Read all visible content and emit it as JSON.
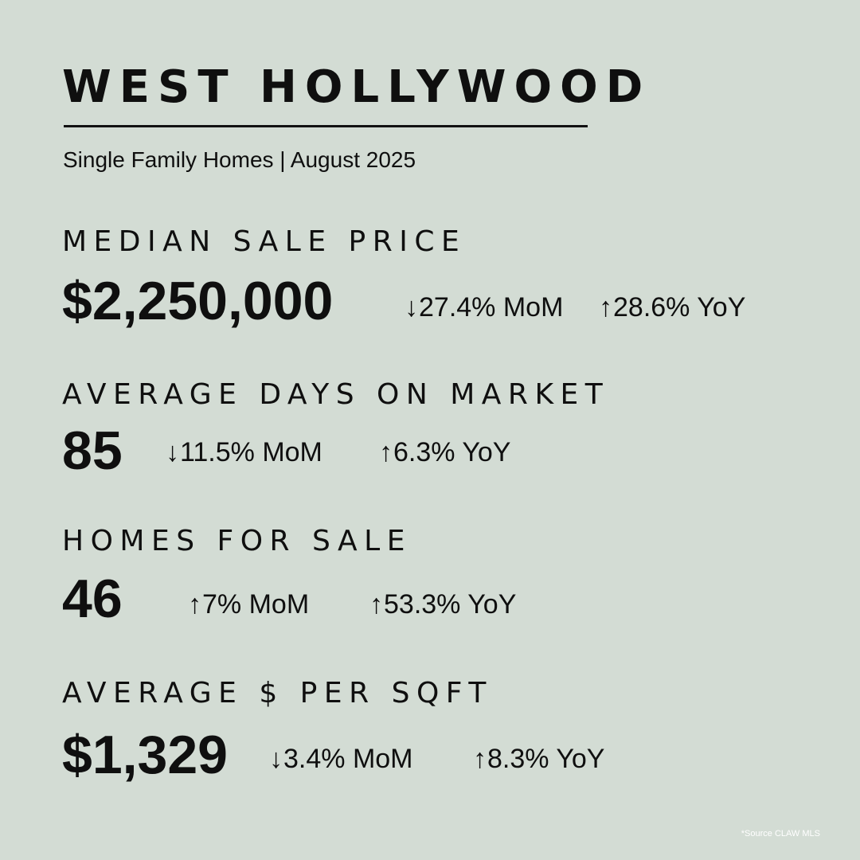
{
  "header": {
    "title": "WEST HOLLYWOOD",
    "subtitle": "Single Family Homes | August 2025"
  },
  "metrics": [
    {
      "label": "MEDIAN SALE PRICE",
      "value": "$2,250,000",
      "mom": {
        "arrow": "↓",
        "text": "27.4% MoM"
      },
      "yoy": {
        "arrow": "↑",
        "text": "28.6% YoY"
      }
    },
    {
      "label": "AVERAGE DAYS ON MARKET",
      "value": "85",
      "mom": {
        "arrow": "↓",
        "text": "11.5% MoM"
      },
      "yoy": {
        "arrow": "↑",
        "text": "6.3% YoY"
      }
    },
    {
      "label": "HOMES FOR SALE",
      "value": "46",
      "mom": {
        "arrow": "↑",
        "text": "7% MoM"
      },
      "yoy": {
        "arrow": "↑",
        "text": "53.3% YoY"
      }
    },
    {
      "label": "AVERAGE $ PER SQFT",
      "value": "$1,329",
      "mom": {
        "arrow": "↓",
        "text": "3.4% MoM"
      },
      "yoy": {
        "arrow": "↑",
        "text": "8.3% YoY"
      }
    }
  ],
  "footer": {
    "source": "*Source CLAW MLS"
  },
  "colors": {
    "background": "#d3dcd4",
    "text": "#0f0f0f",
    "source_text": "#ffffff"
  }
}
